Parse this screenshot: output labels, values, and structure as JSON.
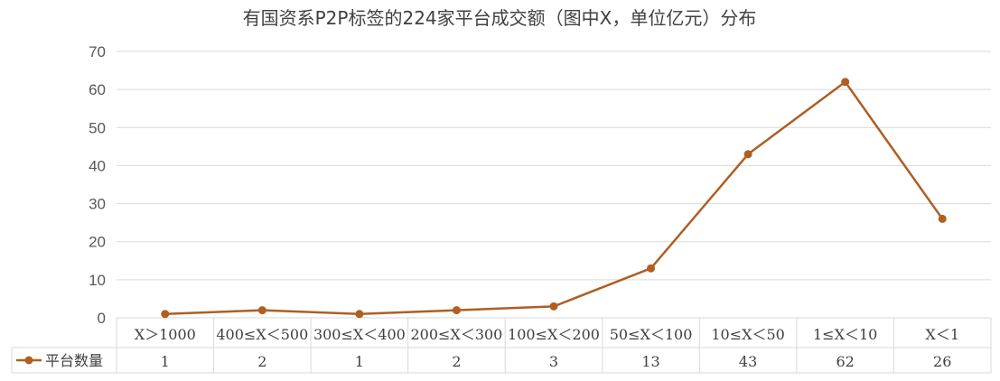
{
  "chart_data": {
    "type": "line",
    "title": "有国资系P2P标签的224家平台成交额（图中X，单位亿元）分布",
    "categories": [
      "X＞1000",
      "400≤X＜500",
      "300≤X＜400",
      "200≤X＜300",
      "100≤X＜200",
      "50≤X＜100",
      "10≤X＜50",
      "1≤X＜10",
      "X＜1"
    ],
    "series": [
      {
        "name": "平台数量",
        "values": [
          1,
          2,
          1,
          2,
          3,
          13,
          43,
          62,
          26
        ],
        "color": "#b05e22"
      }
    ],
    "ylim": [
      0,
      70
    ],
    "yticks": [
      0,
      10,
      20,
      30,
      40,
      50,
      60,
      70
    ],
    "xlabel": "",
    "ylabel": "",
    "grid": true,
    "legend": "data-table-left",
    "data_table": true
  }
}
